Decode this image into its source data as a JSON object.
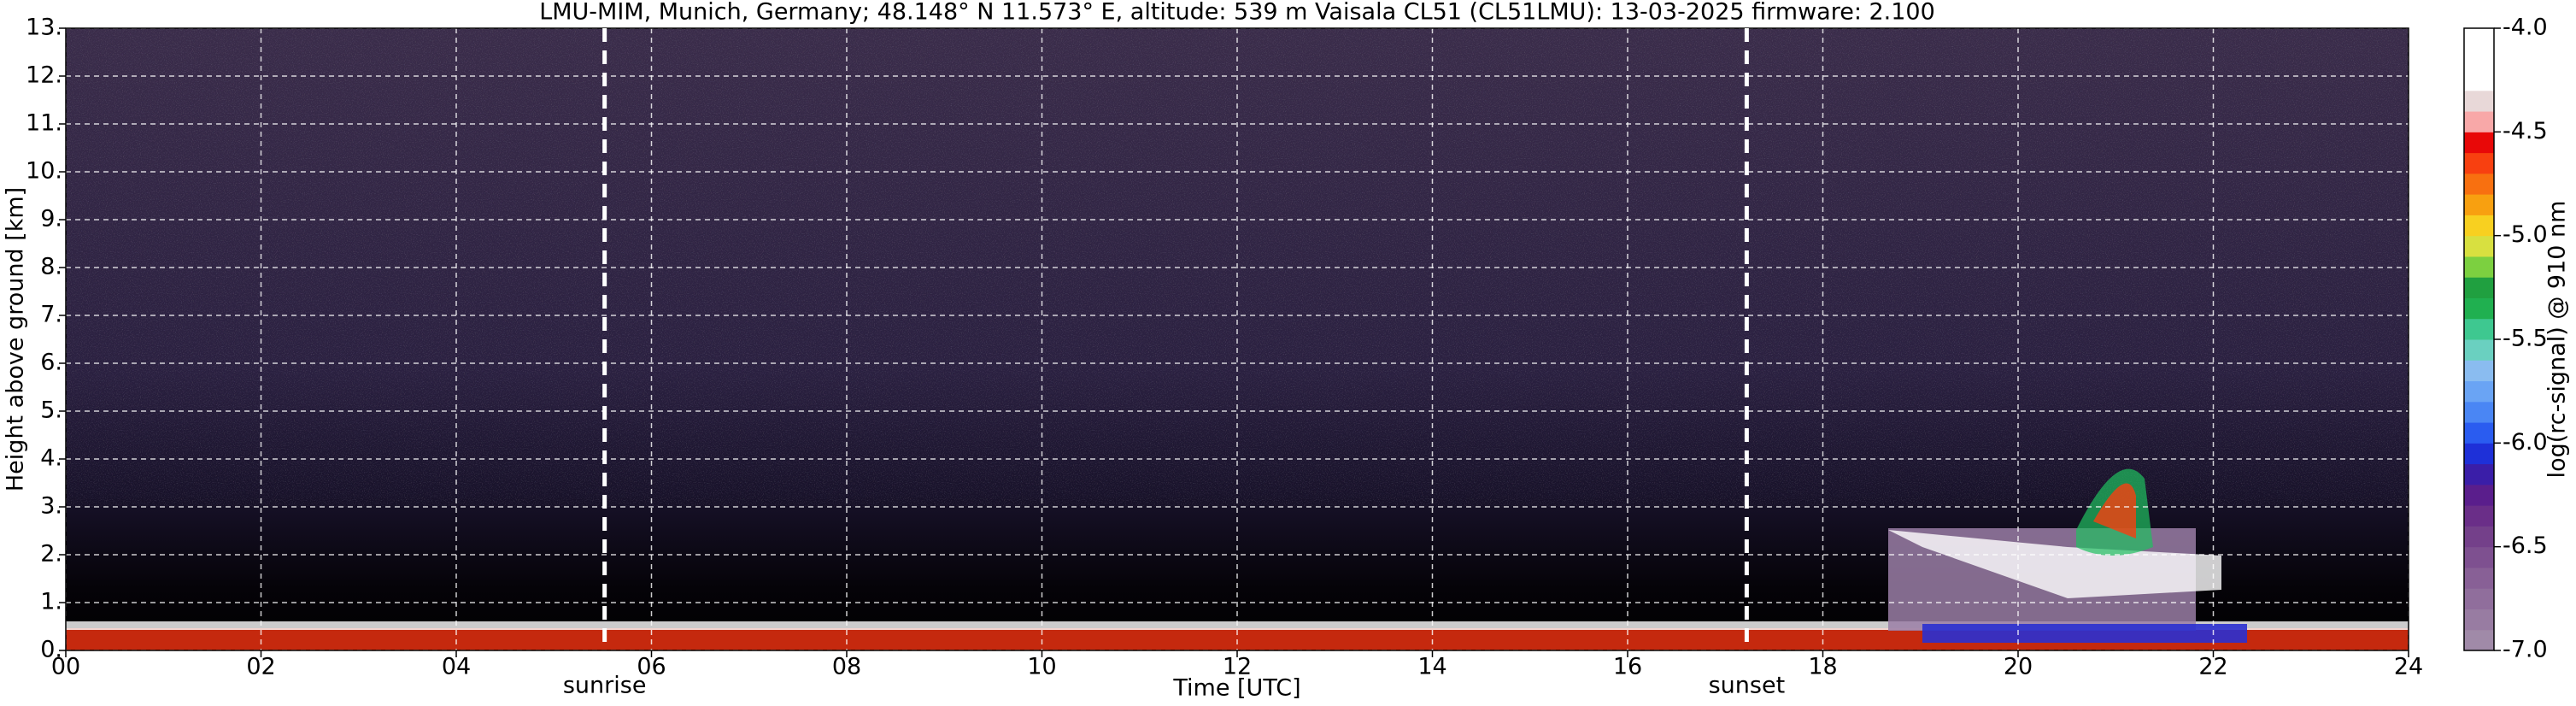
{
  "chart_data": {
    "type": "heatmap",
    "title": "LMU-MIM, Munich, Germany; 48.148° N 11.573° E, altitude: 539 m    Vaisala CL51 (CL51LMU): 13-03-2025    firmware: 2.100",
    "x_label": "Time [UTC]",
    "y_label": "Height above ground [km]",
    "xlim": [
      0,
      24
    ],
    "xticks": [
      {
        "value": 0,
        "label": "00"
      },
      {
        "value": 2,
        "label": "02"
      },
      {
        "value": 4,
        "label": "04"
      },
      {
        "value": 6,
        "label": "06"
      },
      {
        "value": 8,
        "label": "08"
      },
      10,
      12,
      14,
      16,
      18,
      20,
      22,
      24
    ],
    "ylim": [
      0,
      13
    ],
    "yticks": [
      {
        "value": 0,
        "label": "0."
      },
      {
        "value": 1,
        "label": "1."
      },
      {
        "value": 2,
        "label": "2."
      },
      {
        "value": 3,
        "label": "3."
      },
      {
        "value": 4,
        "label": "4."
      },
      {
        "value": 5,
        "label": "5."
      },
      {
        "value": 6,
        "label": "6."
      },
      {
        "value": 7,
        "label": "7."
      },
      {
        "value": 8,
        "label": "8."
      },
      {
        "value": 9,
        "label": "9."
      },
      {
        "value": 10,
        "label": "10."
      },
      {
        "value": 11,
        "label": "11."
      },
      {
        "value": 12,
        "label": "12."
      },
      {
        "value": 13,
        "label": "13."
      }
    ],
    "grid": true,
    "annotations": [
      {
        "label": "sunrise",
        "x": 5.52
      },
      {
        "label": "sunset",
        "x": 17.22
      }
    ],
    "colorbar": {
      "label": "log(rc-signal) @ 910 nm",
      "lim": [
        -7,
        -4
      ],
      "ticks": [
        {
          "value": -4,
          "label": "-4.0"
        },
        -4.5,
        {
          "value": -5,
          "label": "-5.0"
        },
        -5.5,
        {
          "value": -6,
          "label": "-6.0"
        },
        -6.5,
        {
          "value": -7,
          "label": "-7.0"
        }
      ],
      "colors": [
        "#a08aa8",
        "#987ca2",
        "#906e9c",
        "#886096",
        "#7e5090",
        "#74408a",
        "#6a2e88",
        "#5a1e8c",
        "#3a1ea8",
        "#1e30d8",
        "#2a5cf0",
        "#4a86f4",
        "#6aa4f4",
        "#8abcf0",
        "#6ad0c0",
        "#3ec890",
        "#20b050",
        "#20a040",
        "#7cd040",
        "#d8e040",
        "#f8d020",
        "#f8a010",
        "#f87010",
        "#f84010",
        "#e80808",
        "#f8a8a8",
        "#e8d8d8",
        "#ffffff",
        "#ffffff",
        "#ffffff"
      ]
    }
  }
}
